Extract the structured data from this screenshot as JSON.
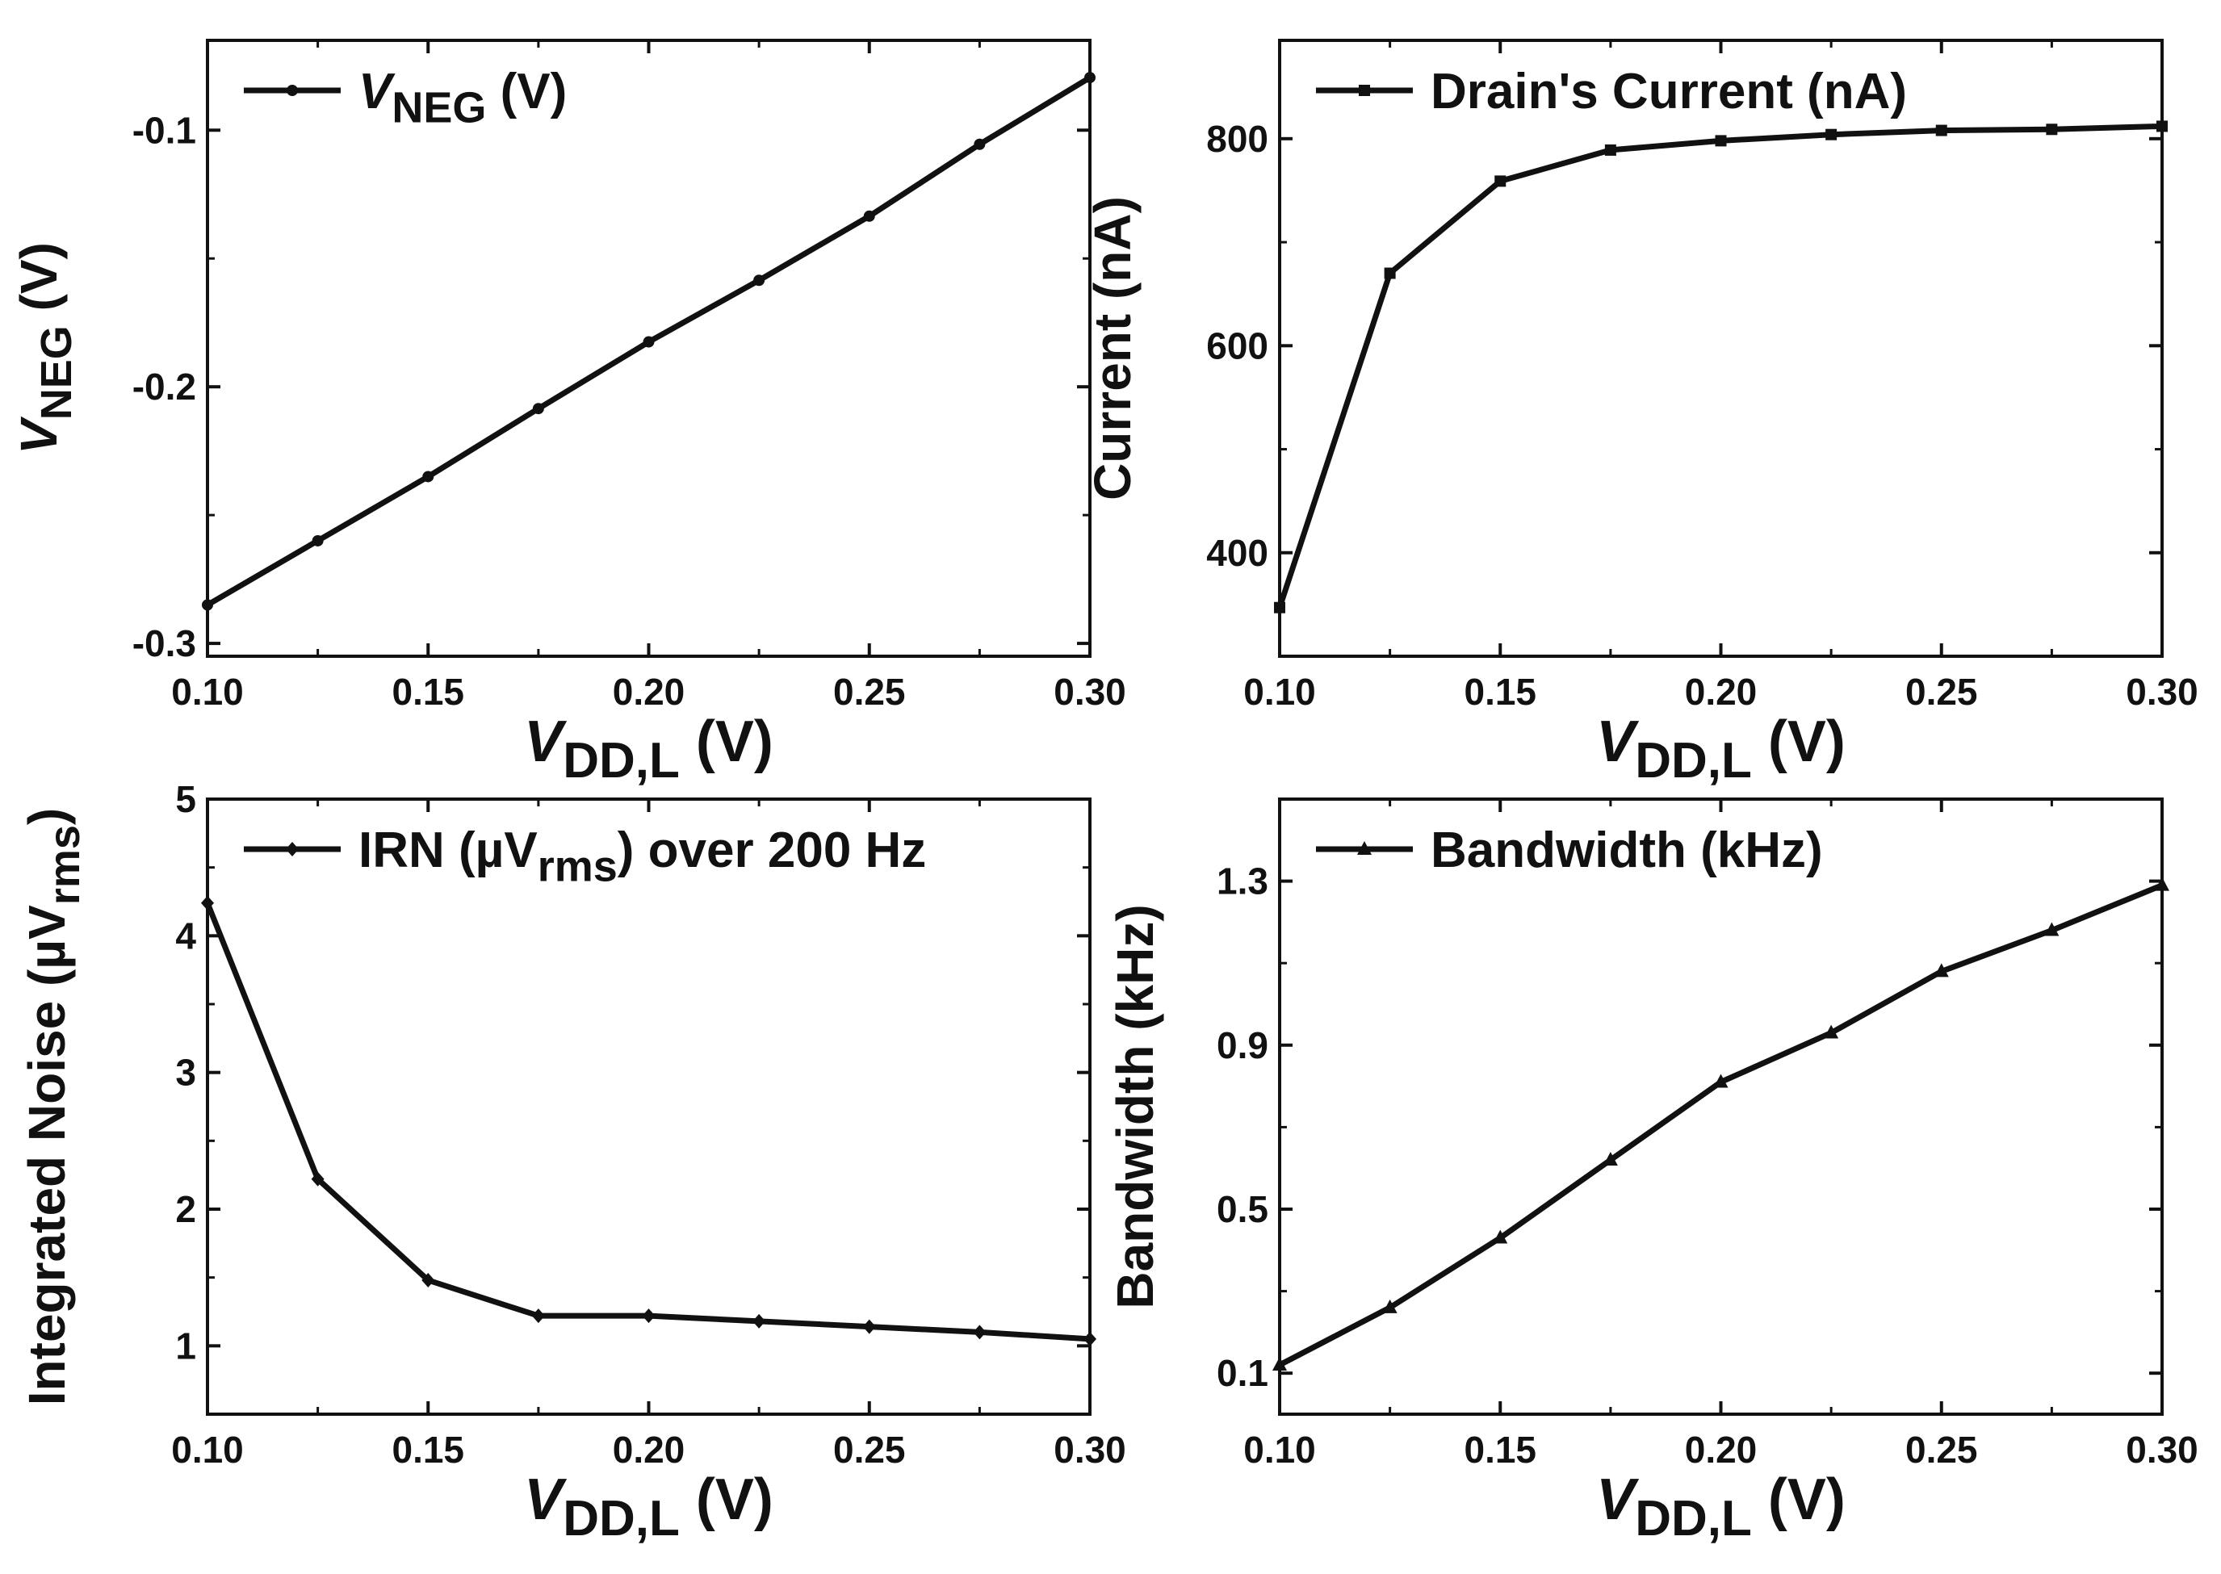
{
  "figure": {
    "x_tick_labels": [
      "0.10",
      "0.15",
      "0.20",
      "0.25",
      "0.30"
    ]
  },
  "chart_data": [
    {
      "id": "vneg",
      "type": "line",
      "title": "",
      "xlabel": {
        "main": "V",
        "sub": "DD,L",
        "tail": " (V)"
      },
      "ylabel": {
        "main": "V",
        "sub": "NEG",
        "tail": " (V)"
      },
      "legend": {
        "main": "V",
        "sub": "NEG",
        "tail": " (V)",
        "marker": "circle",
        "placement": "top-left"
      },
      "xlim": [
        0.1,
        0.3
      ],
      "ylim": [
        -0.305,
        -0.065
      ],
      "xticks": [
        0.1,
        0.15,
        0.2,
        0.25,
        0.3
      ],
      "yticks": [
        -0.3,
        -0.2,
        -0.1
      ],
      "y_tick_labels": [
        "-0.3",
        "-0.2",
        "-0.1"
      ],
      "x": [
        0.1,
        0.125,
        0.15,
        0.175,
        0.2,
        0.225,
        0.25,
        0.275,
        0.3
      ],
      "series": [
        {
          "name": "VNEG (V)",
          "values": [
            -0.285,
            -0.26,
            -0.235,
            -0.2085,
            -0.1825,
            -0.1585,
            -0.1335,
            -0.1055,
            -0.0795
          ]
        }
      ]
    },
    {
      "id": "current",
      "type": "line",
      "title": "",
      "xlabel": {
        "main": "V",
        "sub": "DD,L",
        "tail": " (V)"
      },
      "ylabel": {
        "main": "Current (nA)",
        "sub": "",
        "tail": ""
      },
      "legend": {
        "main": "Drain's Current (nA)",
        "sub": "",
        "tail": "",
        "marker": "square",
        "placement": "top-left"
      },
      "xlim": [
        0.1,
        0.3
      ],
      "ylim": [
        300,
        895
      ],
      "xticks": [
        0.1,
        0.15,
        0.2,
        0.25,
        0.3
      ],
      "yticks": [
        400,
        600,
        800
      ],
      "y_tick_labels": [
        "400",
        "600",
        "800"
      ],
      "x": [
        0.1,
        0.125,
        0.15,
        0.175,
        0.2,
        0.225,
        0.25,
        0.275,
        0.3
      ],
      "series": [
        {
          "name": "Drain's Current (nA)",
          "values": [
            347,
            670,
            759,
            789,
            798,
            804,
            808,
            809,
            812
          ]
        }
      ]
    },
    {
      "id": "noise",
      "type": "line",
      "title": "",
      "xlabel": {
        "main": "V",
        "sub": "DD,L",
        "tail": " (V)"
      },
      "ylabel": {
        "main": "Integrated Noise (µV",
        "sub": "rms",
        "tail": ")"
      },
      "legend": {
        "main": "IRN (µV",
        "sub": "rms",
        "tail": ") over 200 Hz",
        "marker": "diamond",
        "placement": "top-left"
      },
      "xlim": [
        0.1,
        0.3
      ],
      "ylim": [
        0.5,
        5.0
      ],
      "xticks": [
        0.1,
        0.15,
        0.2,
        0.25,
        0.3
      ],
      "yticks": [
        1,
        2,
        3,
        4,
        5
      ],
      "y_tick_labels": [
        "1",
        "2",
        "3",
        "4",
        "5"
      ],
      "x": [
        0.1,
        0.125,
        0.15,
        0.175,
        0.2,
        0.225,
        0.25,
        0.275,
        0.3
      ],
      "series": [
        {
          "name": "IRN (µVrms) over 200 Hz",
          "values": [
            4.24,
            2.22,
            1.48,
            1.22,
            1.22,
            1.18,
            1.14,
            1.1,
            1.05
          ]
        }
      ]
    },
    {
      "id": "bandwidth",
      "type": "line",
      "title": "",
      "xlabel": {
        "main": "V",
        "sub": "DD,L",
        "tail": " (V)"
      },
      "ylabel": {
        "main": "Bandwidth (kHz)",
        "sub": "",
        "tail": ""
      },
      "legend": {
        "main": "Bandwidth (kHz)",
        "sub": "",
        "tail": "",
        "marker": "triangle",
        "placement": "top-left"
      },
      "xlim": [
        0.1,
        0.3
      ],
      "ylim": [
        0.0,
        1.5
      ],
      "xticks": [
        0.1,
        0.15,
        0.2,
        0.25,
        0.3
      ],
      "yticks": [
        0.1,
        0.5,
        0.9,
        1.3
      ],
      "y_tick_labels": [
        "0.1",
        "0.5",
        "0.9",
        "1.3"
      ],
      "x": [
        0.1,
        0.125,
        0.15,
        0.175,
        0.2,
        0.225,
        0.25,
        0.275,
        0.3
      ],
      "series": [
        {
          "name": "Bandwidth (kHz)",
          "values": [
            0.12,
            0.26,
            0.43,
            0.62,
            0.81,
            0.93,
            1.08,
            1.18,
            1.29
          ]
        }
      ]
    }
  ]
}
